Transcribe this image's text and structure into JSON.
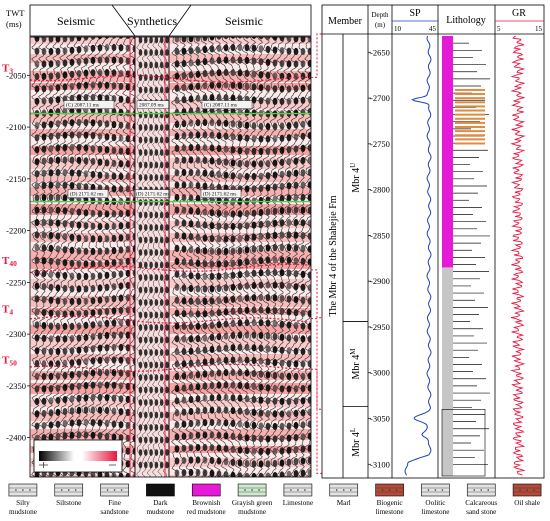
{
  "seismic_panel": {
    "axis_label_line1": "TWT",
    "axis_label_line2": "(ms)",
    "header_left": "Seismic",
    "header_center": "Synthetics",
    "header_right": "Seismic",
    "time_range_ms": [
      2013,
      2438
    ],
    "time_ticks": [
      {
        "value": 2050,
        "label": "-2050"
      },
      {
        "value": 2100,
        "label": "-2100"
      },
      {
        "value": 2150,
        "label": "-2150"
      },
      {
        "value": 2200,
        "label": "-2200"
      },
      {
        "value": 2250,
        "label": "-2250"
      },
      {
        "value": 2300,
        "label": "-2300"
      },
      {
        "value": 2350,
        "label": "-2350"
      },
      {
        "value": 2400,
        "label": "-2400"
      }
    ],
    "horizons": [
      {
        "name": "T3",
        "label": "T",
        "sub": "3",
        "time_ms": 2052
      },
      {
        "name": "T40",
        "label": "T",
        "sub": "40",
        "time_ms": 2238
      },
      {
        "name": "T4",
        "label": "T",
        "sub": "4",
        "time_ms": 2285
      },
      {
        "name": "T50",
        "label": "T",
        "sub": "50",
        "time_ms": 2334
      }
    ],
    "green_lines_ms": [
      2087,
      2172
    ],
    "tie_labels_upper": [
      "(C) 2087.11 ms",
      "2087.09 ms",
      "(C) 2087.11 ms"
    ],
    "tie_labels_lower": [
      "(D) 2171.62 ms",
      "(D) 2171.62 ms",
      "(D) 2171.62 ms"
    ],
    "colors": {
      "accent_red": "#e8173f",
      "green": "#4fd14f",
      "positive": "#f06a6a",
      "negative": "#111111"
    }
  },
  "well_panel": {
    "headers": {
      "member": "Member",
      "depth_line1": "Depth",
      "depth_line2": "(m)",
      "sp": "SP",
      "sp_min": "10",
      "sp_max": "45",
      "lithology": "Lithology",
      "gr": "GR",
      "gr_min": "5",
      "gr_max": "15"
    },
    "depth_range_m": [
      2630,
      3115
    ],
    "depth_ticks": [
      {
        "value": 2650,
        "label": "-2650"
      },
      {
        "value": 2700,
        "label": "-2700"
      },
      {
        "value": 2750,
        "label": "-2750"
      },
      {
        "value": 2800,
        "label": "-2800"
      },
      {
        "value": 2850,
        "label": "-2850"
      },
      {
        "value": 2900,
        "label": "-2900"
      },
      {
        "value": 2950,
        "label": "-2950"
      },
      {
        "value": 3000,
        "label": "-3000"
      },
      {
        "value": 3050,
        "label": "-3050"
      },
      {
        "value": 3100,
        "label": "-3100"
      }
    ],
    "formation_label": "The Mbr 4 of the Shahejie Fm",
    "members": [
      {
        "name": "Mbr 4",
        "sup": "U",
        "top_m": 2630,
        "base_m": 2944
      },
      {
        "name": "Mbr 4",
        "sup": "M",
        "top_m": 2944,
        "base_m": 3037
      },
      {
        "name": "Mbr 4",
        "sup": "L",
        "top_m": 3037,
        "base_m": 3115
      }
    ],
    "colors": {
      "sp_curve": "#1f3fbf",
      "gr_curve": "#e8173f",
      "magenta": "#e619d6",
      "orange": "#e08a42"
    }
  },
  "legend": [
    {
      "name": "Silty mudstone",
      "line1": "Silty",
      "line2": "mudstone",
      "pattern": "silty"
    },
    {
      "name": "Siltstone",
      "line1": "Siltstone",
      "line2": "",
      "pattern": "siltstone"
    },
    {
      "name": "Fine sandstone",
      "line1": "Fine",
      "line2": "sandstone",
      "pattern": "fine"
    },
    {
      "name": "Dark mudstone",
      "line1": "Dark",
      "line2": "mudstone",
      "pattern": "dark"
    },
    {
      "name": "Brownish red mudstone",
      "line1": "Brownish",
      "line2": "red mudstone",
      "pattern": "magenta"
    },
    {
      "name": "Grayish green mudstone",
      "line1": "Grayish green",
      "line2": "mudstone",
      "pattern": "green"
    },
    {
      "name": "Limestone",
      "line1": "Limestone",
      "line2": "",
      "pattern": "limestone"
    },
    {
      "name": "Marl",
      "line1": "Marl",
      "line2": "",
      "pattern": "marl"
    },
    {
      "name": "Biogenic limestone",
      "line1": "Biogenic",
      "line2": "limestone",
      "pattern": "biogenic"
    },
    {
      "name": "Oolitic limestone",
      "line1": "Oolitic",
      "line2": "limestone",
      "pattern": "oolitic"
    },
    {
      "name": "Calcareous sand stone",
      "line1": "Calcareous",
      "line2": "sand stone",
      "pattern": "calc"
    },
    {
      "name": "Oil shale",
      "line1": "Oil shale",
      "line2": "",
      "pattern": "oilshale"
    }
  ]
}
